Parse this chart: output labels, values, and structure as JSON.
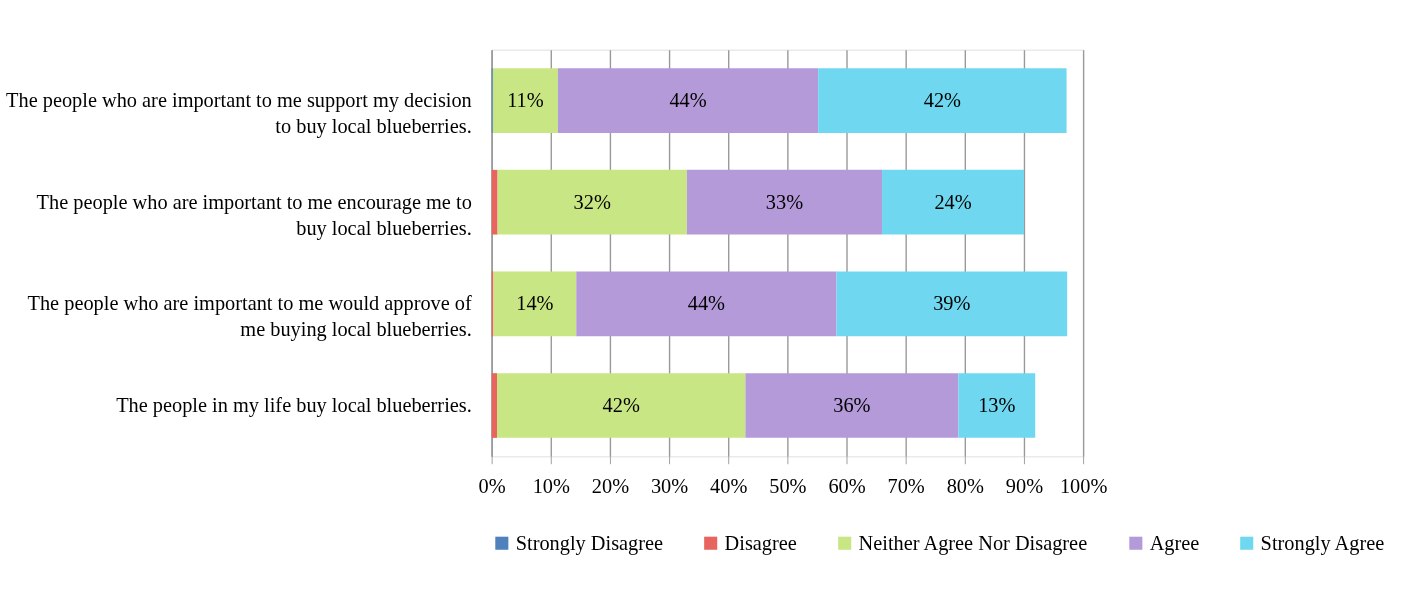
{
  "chart_data": {
    "type": "bar",
    "orientation": "horizontal",
    "stacked": true,
    "categories": [
      "The people who are important to me support my decision\nto buy local blueberries.",
      "The people who are important to me encourage me to\nbuy local blueberries.",
      "The people who are important to me would approve of\nme buying local blueberries.",
      "The people in my life buy local blueberries."
    ],
    "series": [
      {
        "name": "Strongly Disagree",
        "color": "#4f81bd",
        "values": [
          0.2,
          0,
          0,
          0
        ]
      },
      {
        "name": "Disagree",
        "color": "#e8645e",
        "values": [
          0,
          1.0,
          0.3,
          0.9
        ]
      },
      {
        "name": "Neither Agree Nor Disagree",
        "color": "#c8e683",
        "values": [
          11,
          32,
          14,
          42
        ],
        "value_labels": [
          "11%",
          "32%",
          "14%",
          "42%"
        ]
      },
      {
        "name": "Agree",
        "color": "#b49ad8",
        "values": [
          44,
          33,
          44,
          36
        ],
        "value_labels": [
          "44%",
          "33%",
          "44%",
          "36%"
        ]
      },
      {
        "name": "Strongly Agree",
        "color": "#6fd8f0",
        "values": [
          42,
          24,
          39,
          13
        ],
        "value_labels": [
          "42%",
          "24%",
          "39%",
          "13%"
        ]
      }
    ],
    "xlim": [
      0,
      100
    ],
    "xticks": [
      {
        "value": 0,
        "label": "0%"
      },
      {
        "value": 10,
        "label": "10%"
      },
      {
        "value": 20,
        "label": "20%"
      },
      {
        "value": 30,
        "label": "30%"
      },
      {
        "value": 40,
        "label": "40%"
      },
      {
        "value": 50,
        "label": "50%"
      },
      {
        "value": 60,
        "label": "60%"
      },
      {
        "value": 70,
        "label": "70%"
      },
      {
        "value": 80,
        "label": "80%"
      },
      {
        "value": 90,
        "label": "90%"
      },
      {
        "value": 100,
        "label": "100%"
      }
    ],
    "grid": "x",
    "legend": "bottom"
  }
}
